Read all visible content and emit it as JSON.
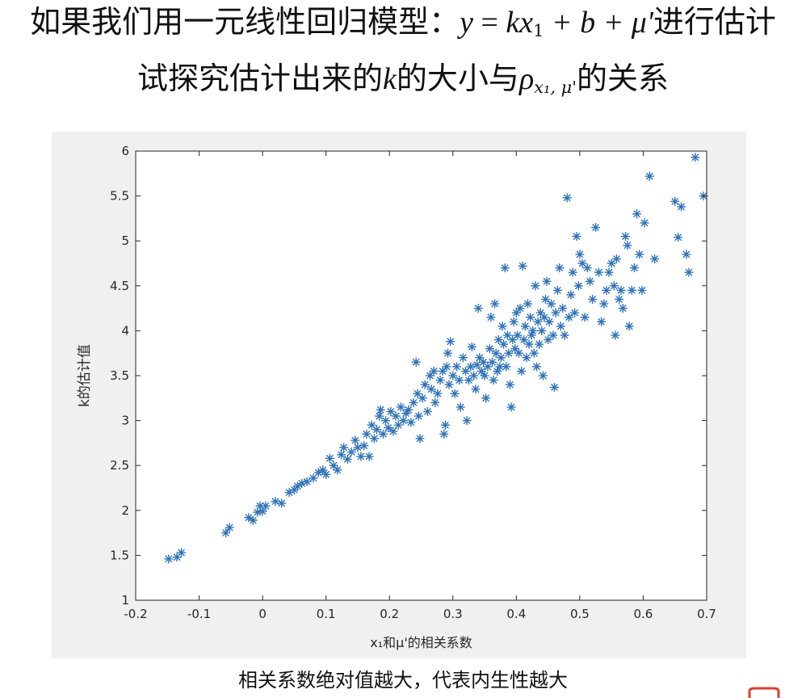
{
  "title": {
    "line1_prefix": "如果我们用一元线性回归模型：",
    "line1_y": "y",
    "line1_eq": " = ",
    "line1_kx": "kx",
    "line1_kx_sub": "1",
    "line1_rest": " + b + μ'",
    "line1_suffix": "进行估计",
    "line2_prefix": "试探究估计出来的",
    "line2_k": "k",
    "line2_mid": "的大小与",
    "line2_rho": "ρ",
    "line2_rho_sub": "x₁, μ'",
    "line2_suffix": "的关系"
  },
  "caption": "相关系数绝对值越大，代表内生性越大",
  "colors": {
    "marker": "#2f73b8",
    "figure_bg": "#f0f0f0",
    "axes_bg": "#ffffff"
  },
  "chart_data": {
    "type": "scatter",
    "marker": "asterisk",
    "xlabel": "x₁和μ'的相关系数",
    "ylabel": "k的估计值",
    "xlim": [
      -0.2,
      0.7
    ],
    "ylim": [
      1,
      6
    ],
    "xticks": [
      "-0.2",
      "-0.1",
      "0",
      "0.1",
      "0.2",
      "0.3",
      "0.4",
      "0.5",
      "0.6",
      "0.7"
    ],
    "yticks": [
      "1",
      "1.5",
      "2",
      "2.5",
      "3",
      "3.5",
      "4",
      "4.5",
      "5",
      "5.5",
      "6"
    ],
    "grid": false,
    "points": [
      [
        -0.148,
        1.46
      ],
      [
        -0.135,
        1.48
      ],
      [
        -0.128,
        1.53
      ],
      [
        -0.058,
        1.75
      ],
      [
        -0.052,
        1.81
      ],
      [
        -0.022,
        1.92
      ],
      [
        -0.015,
        1.89
      ],
      [
        -0.008,
        1.98
      ],
      [
        -0.004,
        2.05
      ],
      [
        0.0,
        1.99
      ],
      [
        0.005,
        2.05
      ],
      [
        0.02,
        2.1
      ],
      [
        0.03,
        2.08
      ],
      [
        0.042,
        2.2
      ],
      [
        0.05,
        2.23
      ],
      [
        0.055,
        2.27
      ],
      [
        0.062,
        2.3
      ],
      [
        0.07,
        2.32
      ],
      [
        0.08,
        2.36
      ],
      [
        0.088,
        2.42
      ],
      [
        0.095,
        2.45
      ],
      [
        0.1,
        2.4
      ],
      [
        0.106,
        2.58
      ],
      [
        0.112,
        2.5
      ],
      [
        0.118,
        2.45
      ],
      [
        0.124,
        2.62
      ],
      [
        0.128,
        2.7
      ],
      [
        0.134,
        2.57
      ],
      [
        0.14,
        2.65
      ],
      [
        0.146,
        2.78
      ],
      [
        0.15,
        2.7
      ],
      [
        0.155,
        2.6
      ],
      [
        0.16,
        2.72
      ],
      [
        0.164,
        2.85
      ],
      [
        0.168,
        2.6
      ],
      [
        0.172,
        2.95
      ],
      [
        0.176,
        2.8
      ],
      [
        0.18,
        2.9
      ],
      [
        0.184,
        3.05
      ],
      [
        0.186,
        3.12
      ],
      [
        0.19,
        2.85
      ],
      [
        0.194,
        3.0
      ],
      [
        0.198,
        2.92
      ],
      [
        0.202,
        3.1
      ],
      [
        0.206,
        2.88
      ],
      [
        0.21,
        3.05
      ],
      [
        0.214,
        2.95
      ],
      [
        0.218,
        3.15
      ],
      [
        0.222,
        3.0
      ],
      [
        0.226,
        3.08
      ],
      [
        0.23,
        3.12
      ],
      [
        0.234,
        2.98
      ],
      [
        0.238,
        3.2
      ],
      [
        0.242,
        3.65
      ],
      [
        0.244,
        3.3
      ],
      [
        0.246,
        3.05
      ],
      [
        0.248,
        2.8
      ],
      [
        0.252,
        3.25
      ],
      [
        0.256,
        3.4
      ],
      [
        0.26,
        3.1
      ],
      [
        0.264,
        3.5
      ],
      [
        0.266,
        3.35
      ],
      [
        0.27,
        3.55
      ],
      [
        0.272,
        3.2
      ],
      [
        0.276,
        3.3
      ],
      [
        0.28,
        3.45
      ],
      [
        0.284,
        3.55
      ],
      [
        0.286,
        2.85
      ],
      [
        0.288,
        2.95
      ],
      [
        0.29,
        3.6
      ],
      [
        0.292,
        3.75
      ],
      [
        0.294,
        3.4
      ],
      [
        0.296,
        3.88
      ],
      [
        0.3,
        3.5
      ],
      [
        0.303,
        3.3
      ],
      [
        0.306,
        3.6
      ],
      [
        0.31,
        3.45
      ],
      [
        0.312,
        3.15
      ],
      [
        0.316,
        3.7
      ],
      [
        0.32,
        3.55
      ],
      [
        0.322,
        3.0
      ],
      [
        0.325,
        3.45
      ],
      [
        0.328,
        3.6
      ],
      [
        0.33,
        3.82
      ],
      [
        0.333,
        3.5
      ],
      [
        0.336,
        3.35
      ],
      [
        0.338,
        3.62
      ],
      [
        0.34,
        4.25
      ],
      [
        0.342,
        3.7
      ],
      [
        0.345,
        3.55
      ],
      [
        0.348,
        3.65
      ],
      [
        0.35,
        3.5
      ],
      [
        0.352,
        3.25
      ],
      [
        0.355,
        3.6
      ],
      [
        0.358,
        3.8
      ],
      [
        0.36,
        4.15
      ],
      [
        0.362,
        3.65
      ],
      [
        0.364,
        3.45
      ],
      [
        0.366,
        4.3
      ],
      [
        0.368,
        3.75
      ],
      [
        0.37,
        3.55
      ],
      [
        0.372,
        3.9
      ],
      [
        0.374,
        3.6
      ],
      [
        0.376,
        3.7
      ],
      [
        0.378,
        4.05
      ],
      [
        0.38,
        3.85
      ],
      [
        0.382,
        4.7
      ],
      [
        0.384,
        3.6
      ],
      [
        0.386,
        3.95
      ],
      [
        0.388,
        3.75
      ],
      [
        0.39,
        3.4
      ],
      [
        0.392,
        3.15
      ],
      [
        0.394,
        3.9
      ],
      [
        0.396,
        4.1
      ],
      [
        0.398,
        3.8
      ],
      [
        0.4,
        4.2
      ],
      [
        0.402,
        3.95
      ],
      [
        0.404,
        3.75
      ],
      [
        0.406,
        4.25
      ],
      [
        0.408,
        3.55
      ],
      [
        0.41,
        4.72
      ],
      [
        0.412,
        3.9
      ],
      [
        0.414,
        4.05
      ],
      [
        0.416,
        3.7
      ],
      [
        0.418,
        4.3
      ],
      [
        0.42,
        3.85
      ],
      [
        0.422,
        4.15
      ],
      [
        0.424,
        3.95
      ],
      [
        0.426,
        4.0
      ],
      [
        0.428,
        3.75
      ],
      [
        0.43,
        4.5
      ],
      [
        0.432,
        3.6
      ],
      [
        0.434,
        4.1
      ],
      [
        0.436,
        3.85
      ],
      [
        0.438,
        4.2
      ],
      [
        0.44,
        4.0
      ],
      [
        0.442,
        3.5
      ],
      [
        0.444,
        4.15
      ],
      [
        0.446,
        4.35
      ],
      [
        0.448,
        4.55
      ],
      [
        0.45,
        3.9
      ],
      [
        0.452,
        4.1
      ],
      [
        0.455,
        4.3
      ],
      [
        0.458,
        3.95
      ],
      [
        0.46,
        3.37
      ],
      [
        0.462,
        4.2
      ],
      [
        0.465,
        4.45
      ],
      [
        0.468,
        4.7
      ],
      [
        0.47,
        4.05
      ],
      [
        0.473,
        4.25
      ],
      [
        0.476,
        3.95
      ],
      [
        0.48,
        5.48
      ],
      [
        0.483,
        4.15
      ],
      [
        0.486,
        4.4
      ],
      [
        0.489,
        4.65
      ],
      [
        0.492,
        4.2
      ],
      [
        0.495,
        5.05
      ],
      [
        0.498,
        4.5
      ],
      [
        0.5,
        4.85
      ],
      [
        0.504,
        4.75
      ],
      [
        0.508,
        4.15
      ],
      [
        0.512,
        4.7
      ],
      [
        0.516,
        4.55
      ],
      [
        0.52,
        4.35
      ],
      [
        0.525,
        5.15
      ],
      [
        0.53,
        4.65
      ],
      [
        0.534,
        4.1
      ],
      [
        0.538,
        4.3
      ],
      [
        0.542,
        4.45
      ],
      [
        0.546,
        4.65
      ],
      [
        0.55,
        4.75
      ],
      [
        0.554,
        4.5
      ],
      [
        0.556,
        3.95
      ],
      [
        0.558,
        4.8
      ],
      [
        0.562,
        4.35
      ],
      [
        0.565,
        4.45
      ],
      [
        0.568,
        4.25
      ],
      [
        0.572,
        5.05
      ],
      [
        0.575,
        4.95
      ],
      [
        0.578,
        4.05
      ],
      [
        0.582,
        4.45
      ],
      [
        0.586,
        4.7
      ],
      [
        0.59,
        5.3
      ],
      [
        0.594,
        4.85
      ],
      [
        0.598,
        4.45
      ],
      [
        0.602,
        5.2
      ],
      [
        0.61,
        5.72
      ],
      [
        0.618,
        4.8
      ],
      [
        0.65,
        5.44
      ],
      [
        0.655,
        5.04
      ],
      [
        0.66,
        5.38
      ],
      [
        0.668,
        4.85
      ],
      [
        0.672,
        4.65
      ],
      [
        0.682,
        5.93
      ],
      [
        0.695,
        5.5
      ]
    ]
  }
}
